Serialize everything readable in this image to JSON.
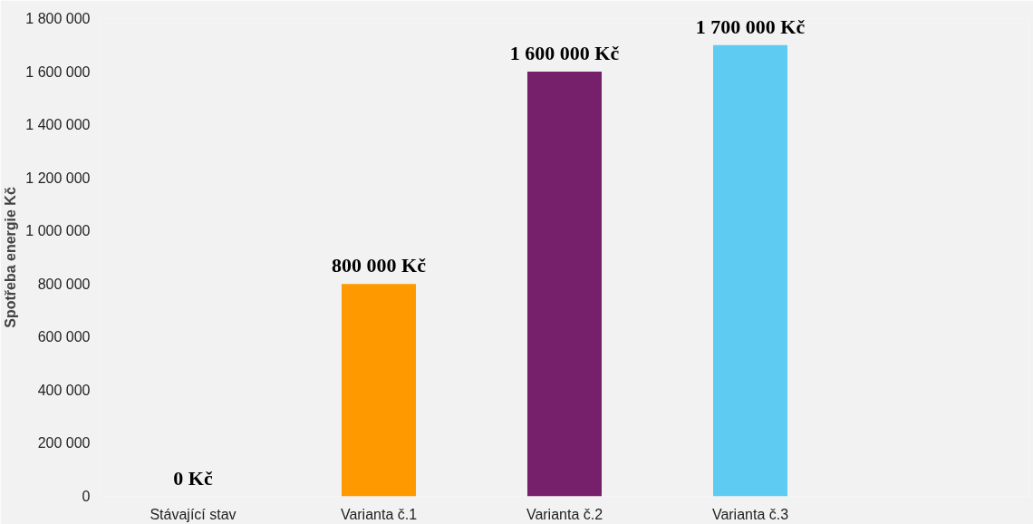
{
  "chart_data": {
    "type": "bar",
    "ylabel": "Spotřeba energie Kč",
    "categories": [
      "Stávající stav",
      "Varianta č.1",
      "Varianta č.2",
      "Varianta č.3"
    ],
    "values": [
      0,
      800000,
      1600000,
      1700000
    ],
    "colors": [
      "#4472c4",
      "#ff9900",
      "#76206b",
      "#5ecbf3"
    ],
    "value_labels": [
      "0 Kč",
      "800 000 Kč",
      "1 600 000 Kč",
      "1 700 000 Kč"
    ],
    "ylim": [
      0,
      1800000
    ],
    "yticks": [
      {
        "value": 0,
        "label": "0"
      },
      {
        "value": 200000,
        "label": "200 000"
      },
      {
        "value": 400000,
        "label": "400 000"
      },
      {
        "value": 600000,
        "label": "600 000"
      },
      {
        "value": 800000,
        "label": "800 000"
      },
      {
        "value": 1000000,
        "label": "1 000 000"
      },
      {
        "value": 1200000,
        "label": "1 200 000"
      },
      {
        "value": 1400000,
        "label": "1 400 000"
      },
      {
        "value": 1600000,
        "label": "1 600 000"
      },
      {
        "value": 1800000,
        "label": "1 800 000"
      }
    ],
    "grid": false
  }
}
